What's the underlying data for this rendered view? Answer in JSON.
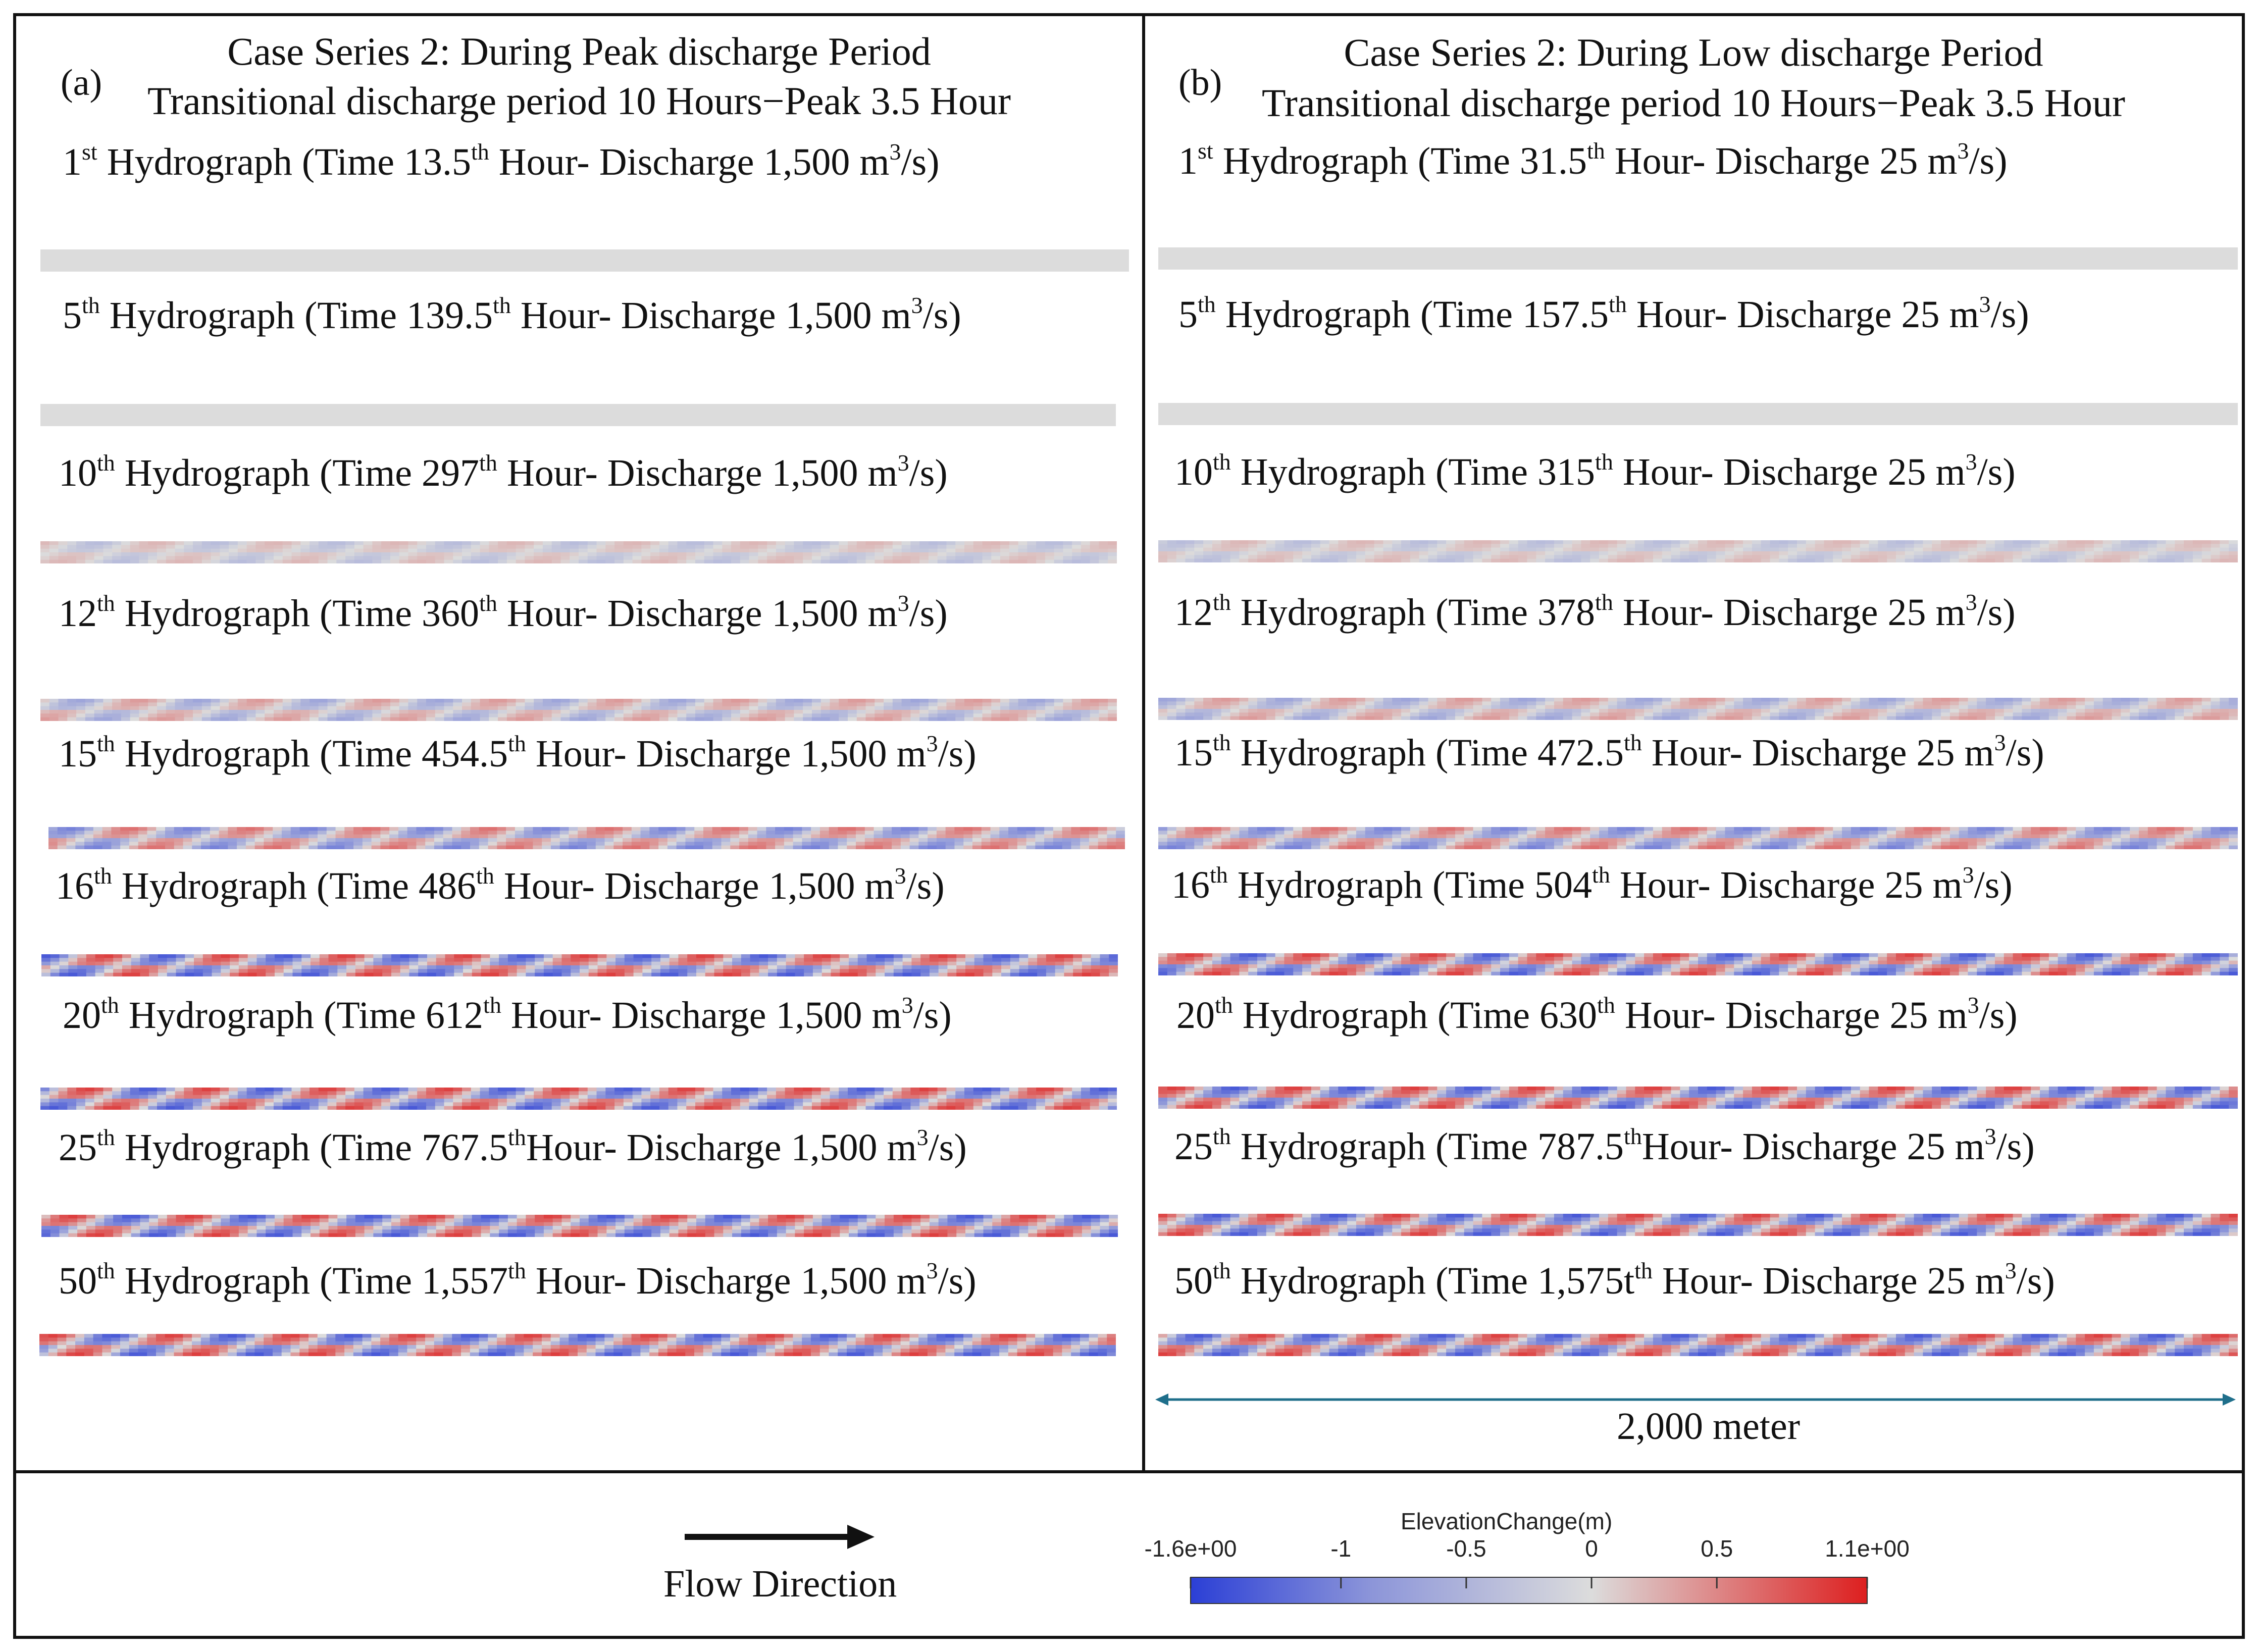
{
  "panel_a": {
    "letter": "(a)",
    "title_line1": "Case Series 2: During Peak discharge Period",
    "title_line2": "Transitional discharge period 10 Hours−Peak 3.5 Hour",
    "rows": [
      {
        "num": "1",
        "ord": "st",
        "pre_time": " Hydrograph (Time 13.5",
        "post": " Hour- Discharge 1,500 m",
        "unit_tail": "/s)",
        "pattern": "flat"
      },
      {
        "num": "5",
        "ord": "th",
        "pre_time": " Hydrograph (Time 139.5",
        "post": " Hour- Discharge 1,500 m",
        "unit_tail": "/s)",
        "pattern": "flat"
      },
      {
        "num": "10",
        "ord": "th",
        "pre_time": " Hydrograph (Time 297",
        "post": " Hour- Discharge 1,500 m",
        "unit_tail": "/s)",
        "pattern": "faint"
      },
      {
        "num": "12",
        "ord": "th",
        "pre_time": " Hydrograph (Time 360",
        "post": " Hour- Discharge 1,500 m",
        "unit_tail": "/s)",
        "pattern": "light"
      },
      {
        "num": "15",
        "ord": "th",
        "pre_time": " Hydrograph (Time 454.5",
        "post": " Hour- Discharge 1,500 m",
        "unit_tail": "/s)",
        "pattern": "medium"
      },
      {
        "num": "16",
        "ord": "th",
        "pre_time": " Hydrograph (Time 486",
        "post": " Hour- Discharge 1,500 m",
        "unit_tail": "/s)",
        "pattern": "strong"
      },
      {
        "num": "20",
        "ord": "th",
        "pre_time": " Hydrograph (Time 612",
        "post": " Hour- Discharge 1,500 m",
        "unit_tail": "/s)",
        "pattern": "strong"
      },
      {
        "num": "25",
        "ord": "th",
        "pre_time": " Hydrograph (Time 767.5",
        "post": "Hour- Discharge 1,500 m",
        "unit_tail": "/s)",
        "pattern": "strong"
      },
      {
        "num": "50",
        "ord": "th",
        "pre_time": " Hydrograph (Time 1,557",
        "post": " Hour- Discharge 1,500 m",
        "unit_tail": "/s)",
        "pattern": "strong"
      }
    ]
  },
  "panel_b": {
    "letter": "(b)",
    "title_line1": "Case Series 2: During Low discharge Period",
    "title_line2": "Transitional discharge period 10 Hours−Peak 3.5 Hour",
    "rows": [
      {
        "num": "1",
        "ord": "st",
        "pre_time": " Hydrograph (Time 31.5",
        "post": " Hour- Discharge 25 m",
        "unit_tail": "/s)",
        "pattern": "flat"
      },
      {
        "num": "5",
        "ord": "th",
        "pre_time": " Hydrograph (Time 157.5",
        "post": " Hour- Discharge 25 m",
        "unit_tail": "/s)",
        "pattern": "flat"
      },
      {
        "num": "10",
        "ord": "th",
        "pre_time": " Hydrograph (Time 315",
        "post": " Hour- Discharge 25 m",
        "unit_tail": "/s)",
        "pattern": "faint"
      },
      {
        "num": "12",
        "ord": "th",
        "pre_time": " Hydrograph (Time 378",
        "post": " Hour- Discharge 25 m",
        "unit_tail": "/s)",
        "pattern": "light"
      },
      {
        "num": "15",
        "ord": "th",
        "pre_time": " Hydrograph (Time 472.5",
        "post": " Hour- Discharge 25 m",
        "unit_tail": "/s)",
        "pattern": "medium"
      },
      {
        "num": "16",
        "ord": "th",
        "pre_time": " Hydrograph (Time 504",
        "post": " Hour- Discharge 25 m",
        "unit_tail": "/s)",
        "pattern": "strong"
      },
      {
        "num": "20",
        "ord": "th",
        "pre_time": " Hydrograph (Time 630",
        "post": " Hour- Discharge 25 m",
        "unit_tail": "/s)",
        "pattern": "strong"
      },
      {
        "num": "25",
        "ord": "th",
        "pre_time": " Hydrograph (Time 787.5",
        "post": "Hour- Discharge 25 m",
        "unit_tail": "/s)",
        "pattern": "strong"
      },
      {
        "num": "50",
        "ord": "th",
        "pre_time": " Hydrograph (Time 1,575t",
        "post": " Hour- Discharge 25 m",
        "unit_tail": "/s)",
        "pattern": "strong"
      }
    ]
  },
  "ord_time": "th",
  "unit_exp": "3",
  "scale_bar_label": "2,000 meter",
  "legend": {
    "flow_label": "Flow Direction",
    "colorbar_title": "ElevationChange(m)",
    "ticks": [
      "-1.6e+00",
      "-1",
      "-0.5",
      "0",
      "0.5",
      "1.1e+00"
    ],
    "min": -1.6,
    "max": 1.1,
    "tick_values": [
      -1.6,
      -1,
      -0.5,
      0,
      0.5,
      1.1
    ],
    "color_low": "#2b3fd6",
    "color_mid": "#dcdcdc",
    "color_high": "#dd1f1f"
  }
}
